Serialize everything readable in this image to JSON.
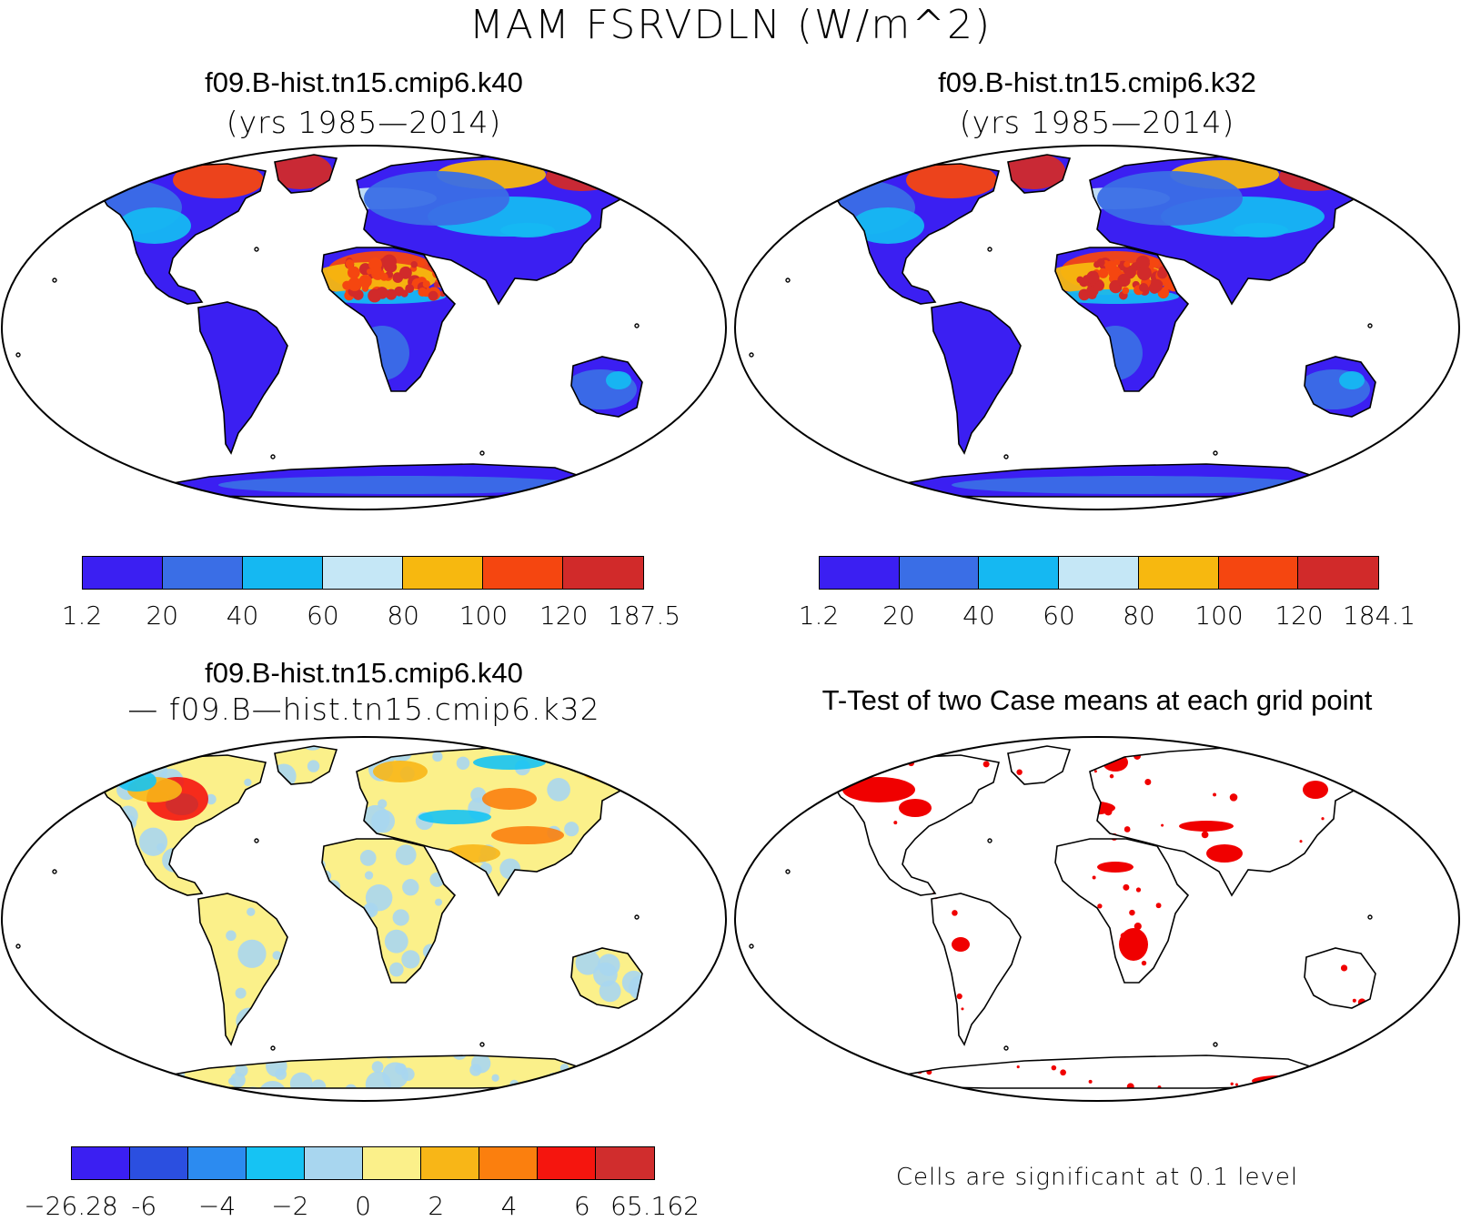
{
  "title": "MAM FSRVDLN (W/m^2)",
  "panels": [
    {
      "title": "f09.B-hist.tn15.cmip6.k40",
      "subtitle": "(yrs 1985—2014)",
      "colorbar": {
        "labels": [
          "1.2",
          "20",
          "40",
          "60",
          "80",
          "100",
          "120",
          "187.5"
        ],
        "colors": [
          "#3b1ff2",
          "#3a6ee6",
          "#15b8f2",
          "#c5e7f6",
          "#f7b80f",
          "#f54610",
          "#d12a2a"
        ]
      }
    },
    {
      "title": "f09.B-hist.tn15.cmip6.k32",
      "subtitle": "(yrs 1985—2014)",
      "colorbar": {
        "labels": [
          "1.2",
          "20",
          "40",
          "60",
          "80",
          "100",
          "120",
          "184.1"
        ],
        "colors": [
          "#3b1ff2",
          "#3a6ee6",
          "#15b8f2",
          "#c5e7f6",
          "#f7b80f",
          "#f54610",
          "#d12a2a"
        ]
      }
    },
    {
      "title": "f09.B-hist.tn15.cmip6.k40",
      "subtitle": "— f09.B—hist.tn15.cmip6.k32",
      "colorbar": {
        "labels": [
          "−26.28",
          "-6",
          "−4",
          "−2",
          "0",
          "2",
          "4",
          "6",
          "65.162"
        ],
        "colors": [
          "#3b1ff2",
          "#2b4fe0",
          "#2c8bf0",
          "#16c3f3",
          "#a8d6ef",
          "#fbf08a",
          "#f8b617",
          "#fb7f0e",
          "#f5150e",
          "#d02d2d"
        ]
      }
    },
    {
      "title": "T-Test of two Case means at each grid point",
      "note": "Cells are significant at 0.1 level"
    }
  ]
}
